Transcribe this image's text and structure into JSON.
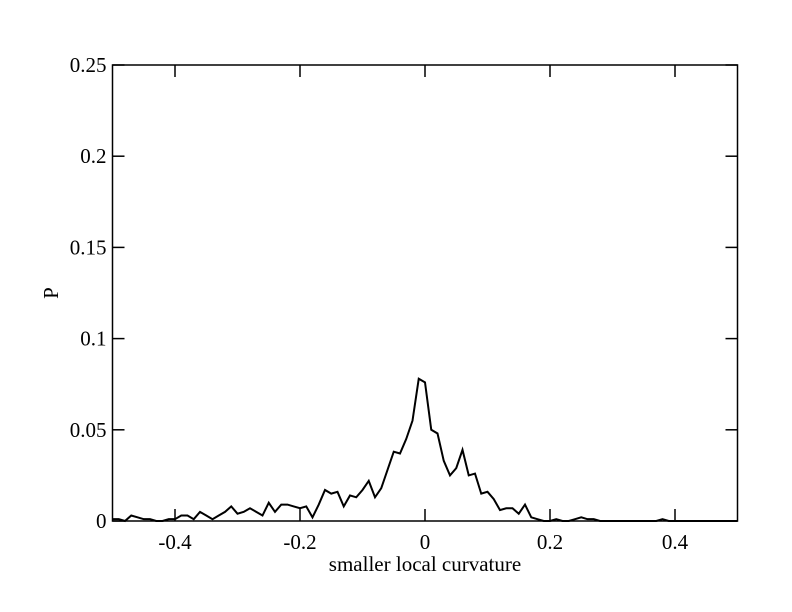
{
  "chart_data": {
    "type": "line",
    "xlabel": "smaller local curvature",
    "ylabel": "P",
    "x": [
      -0.5,
      -0.49,
      -0.48,
      -0.47,
      -0.46,
      -0.45,
      -0.44,
      -0.43,
      -0.42,
      -0.41,
      -0.4,
      -0.39,
      -0.38,
      -0.37,
      -0.36,
      -0.35,
      -0.34,
      -0.33,
      -0.32,
      -0.31,
      -0.3,
      -0.29,
      -0.28,
      -0.27,
      -0.26,
      -0.25,
      -0.24,
      -0.23,
      -0.22,
      -0.21,
      -0.2,
      -0.19,
      -0.18,
      -0.17,
      -0.16,
      -0.15,
      -0.14,
      -0.13,
      -0.12,
      -0.11,
      -0.1,
      -0.09,
      -0.08,
      -0.07,
      -0.06,
      -0.05,
      -0.04,
      -0.03,
      -0.02,
      -0.01,
      0,
      0.01,
      0.02,
      0.03,
      0.04,
      0.05,
      0.06,
      0.07,
      0.08,
      0.09,
      0.1,
      0.11,
      0.12,
      0.13,
      0.14,
      0.15,
      0.16,
      0.17,
      0.18,
      0.19,
      0.2,
      0.21,
      0.22,
      0.23,
      0.24,
      0.25,
      0.26,
      0.27,
      0.28,
      0.29,
      0.3,
      0.31,
      0.32,
      0.33,
      0.34,
      0.35,
      0.36,
      0.37,
      0.38,
      0.39,
      0.4,
      0.41,
      0.42,
      0.43,
      0.44,
      0.45,
      0.46,
      0.47,
      0.48,
      0.49,
      0.5
    ],
    "values": [
      0.001,
      0.001,
      0,
      0.003,
      0.002,
      0.001,
      0.001,
      0,
      0,
      0.001,
      0.001,
      0.003,
      0.003,
      0.001,
      0.005,
      0.003,
      0.001,
      0.003,
      0.005,
      0.008,
      0.004,
      0.005,
      0.007,
      0.005,
      0.003,
      0.01,
      0.005,
      0.009,
      0.009,
      0.008,
      0.007,
      0.008,
      0.002,
      0.009,
      0.017,
      0.015,
      0.016,
      0.008,
      0.014,
      0.013,
      0.017,
      0.022,
      0.013,
      0.018,
      0.028,
      0.038,
      0.037,
      0.045,
      0.055,
      0.078,
      0.076,
      0.05,
      0.048,
      0.033,
      0.025,
      0.029,
      0.039,
      0.025,
      0.026,
      0.015,
      0.016,
      0.012,
      0.006,
      0.007,
      0.007,
      0.004,
      0.009,
      0.002,
      0.001,
      0,
      0,
      0.001,
      0,
      0,
      0.001,
      0.002,
      0.001,
      0.001,
      0,
      0,
      0,
      0,
      0,
      0,
      0,
      0,
      0,
      0,
      0.001,
      0,
      0,
      0,
      0,
      0,
      0,
      0,
      0,
      0,
      0,
      0,
      0
    ],
    "color": "#000000",
    "xlim": [
      -0.5,
      0.5
    ],
    "xticks": [
      -0.4,
      -0.2,
      0,
      0.2,
      0.4
    ],
    "ylim": [
      0,
      0.25
    ],
    "yticks": [
      0,
      0.05,
      0.1,
      0.15,
      0.2,
      0.25
    ]
  }
}
